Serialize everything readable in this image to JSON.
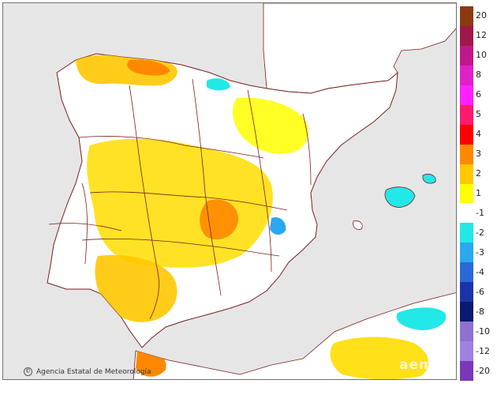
{
  "credit": {
    "agency": "Agencia Estatal de Meteorología",
    "symbol": "©"
  },
  "watermark": "aemet",
  "colors": {
    "sea": "#e6e6e6",
    "land": "#ffffff",
    "border": "#7a1e1e",
    "frame": "#707070"
  },
  "legend": [
    {
      "label": "20",
      "color": "#8b3a0f"
    },
    {
      "label": "12",
      "color": "#a0174a"
    },
    {
      "label": "10",
      "color": "#c0188a"
    },
    {
      "label": "8",
      "color": "#e020c8"
    },
    {
      "label": "6",
      "color": "#ff20ff"
    },
    {
      "label": "5",
      "color": "#ff1a6e"
    },
    {
      "label": "4",
      "color": "#ff0000"
    },
    {
      "label": "3",
      "color": "#ff8800"
    },
    {
      "label": "2",
      "color": "#ffc800"
    },
    {
      "label": "1",
      "color": "#ffff00"
    },
    {
      "label": "-1",
      "color": "#ffffff"
    },
    {
      "label": "-2",
      "color": "#22e8e8"
    },
    {
      "label": "-3",
      "color": "#2aa8f0"
    },
    {
      "label": "-4",
      "color": "#2a68d8"
    },
    {
      "label": "-6",
      "color": "#1a34a8"
    },
    {
      "label": "-8",
      "color": "#0a1a70"
    },
    {
      "label": "-10",
      "color": "#9070d0"
    },
    {
      "label": "-12",
      "color": "#a080e0"
    },
    {
      "label": "-20",
      "color": "#7a38b8"
    }
  ]
}
